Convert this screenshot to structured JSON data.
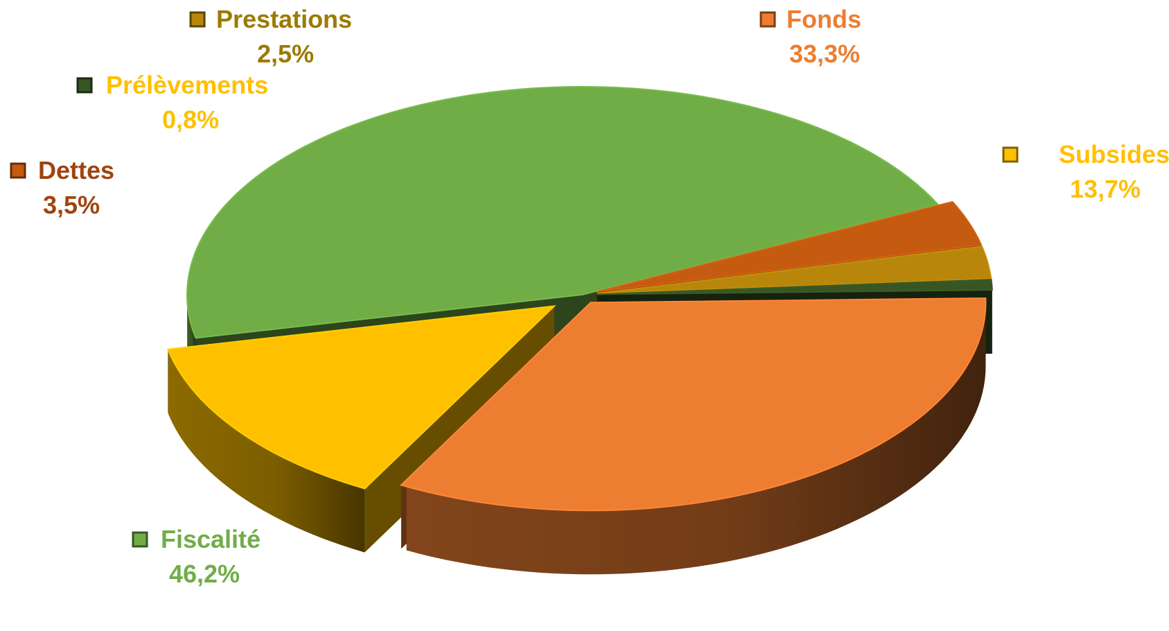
{
  "chart_data": {
    "type": "pie",
    "variant": "3d-exploded",
    "title": "",
    "slices": [
      {
        "name": "Fiscalité",
        "value": 46.2,
        "label": "46,2%",
        "color": "#70ad47",
        "text_color": "#70ad47"
      },
      {
        "name": "Dettes",
        "value": 3.5,
        "label": "3,5%",
        "color": "#c55a11",
        "text_color": "#a0440f"
      },
      {
        "name": "Prestations",
        "value": 2.5,
        "label": "2,5%",
        "color": "#b8860b",
        "text_color": "#9c7a00"
      },
      {
        "name": "Prélèvements",
        "value": 0.8,
        "label": "0,8%",
        "color": "#375623",
        "text_color": "#ffc000"
      },
      {
        "name": "Fonds",
        "value": 33.3,
        "label": "33,3%",
        "color": "#ed7d31",
        "text_color": "#ed7d31"
      },
      {
        "name": "Subsides",
        "value": 13.7,
        "label": "13,7%",
        "color": "#ffc000",
        "text_color": "#ffc000"
      }
    ],
    "legend": "inline-labels"
  }
}
